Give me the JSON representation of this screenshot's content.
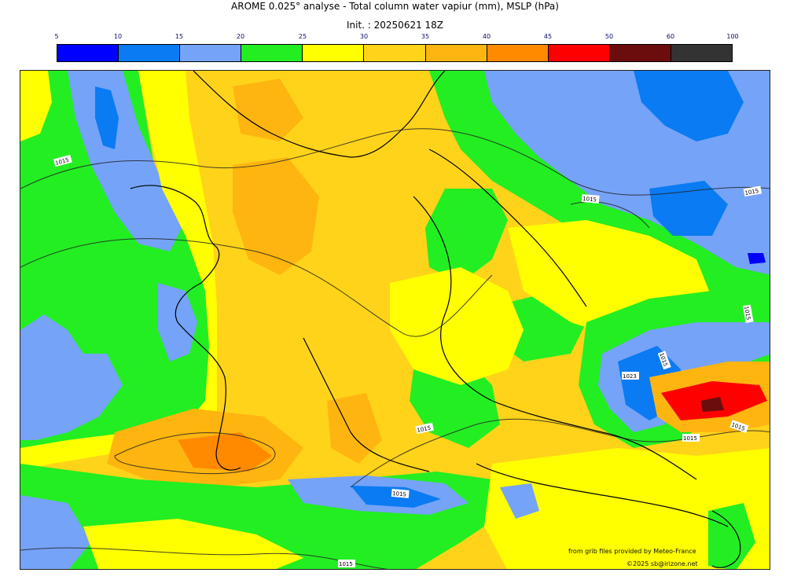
{
  "header": {
    "title": "AROME 0.025° analyse - Total column water vapiur (mm), MSLP (hPa)",
    "init": "Init. : 20250621 18Z"
  },
  "legend": {
    "ticks": [
      "5",
      "10",
      "15",
      "20",
      "25",
      "30",
      "35",
      "40",
      "45",
      "50",
      "60",
      "100"
    ],
    "colors": [
      "#0000ff",
      "#0a7bf2",
      "#75a3f8",
      "#22ee22",
      "#ffff00",
      "#ffd31a",
      "#ffb50f",
      "#ff8a00",
      "#ff0000",
      "#6b0d0d",
      "#333333"
    ]
  },
  "map": {
    "isobar_labels": [
      "1015",
      "1015",
      "1015",
      "1015",
      "1015",
      "1015",
      "1015",
      "1015",
      "1023",
      "1015",
      "1015"
    ]
  },
  "credits": {
    "source": "from grib files provided by Meteo-France",
    "copyright": "©2025 sb@irizone.net"
  }
}
